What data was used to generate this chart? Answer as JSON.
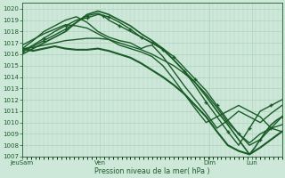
{
  "background_color": "#cde8d8",
  "grid_color": "#aaccb8",
  "line_color": "#1a5c28",
  "xlabel": "Pression niveau de la mer( hPa )",
  "ylim": [
    1007,
    1020.5
  ],
  "yticks": [
    1007,
    1008,
    1009,
    1010,
    1011,
    1012,
    1013,
    1014,
    1015,
    1016,
    1017,
    1018,
    1019,
    1020
  ],
  "xtick_labels": [
    "JeuSam",
    "Ven",
    "Dim",
    "Lun"
  ],
  "xtick_pos": [
    0,
    72,
    173,
    212
  ],
  "xlim": [
    0,
    240
  ],
  "minor_xtick_count": 240,
  "lines": [
    {
      "x": [
        0,
        5,
        10,
        15,
        20,
        25,
        30,
        35,
        40,
        50,
        60,
        70,
        80,
        90,
        100,
        110,
        120,
        130,
        140,
        150,
        160,
        170,
        180,
        190,
        200,
        210,
        220,
        230,
        240
      ],
      "y": [
        1016.5,
        1016.4,
        1016.3,
        1016.4,
        1016.5,
        1016.6,
        1016.7,
        1016.6,
        1016.5,
        1016.4,
        1016.4,
        1016.5,
        1016.3,
        1016.0,
        1015.7,
        1015.2,
        1014.6,
        1014.0,
        1013.3,
        1012.5,
        1011.5,
        1010.5,
        1009.2,
        1008.0,
        1007.5,
        1007.2,
        1007.8,
        1008.5,
        1009.2
      ],
      "lw": 1.5,
      "marker": null,
      "ms": 0
    },
    {
      "x": [
        0,
        10,
        20,
        30,
        40,
        50,
        60,
        70,
        80,
        90,
        100,
        110,
        120,
        130,
        140,
        150,
        160,
        170,
        180,
        190,
        200,
        210,
        220,
        230,
        240
      ],
      "y": [
        1016.5,
        1016.6,
        1016.8,
        1017.0,
        1017.2,
        1017.3,
        1017.4,
        1017.4,
        1017.3,
        1017.0,
        1016.7,
        1016.4,
        1016.0,
        1015.5,
        1015.0,
        1014.3,
        1013.5,
        1012.5,
        1011.3,
        1010.0,
        1009.0,
        1008.2,
        1009.0,
        1009.5,
        1009.8
      ],
      "lw": 1.0,
      "marker": null,
      "ms": 0
    },
    {
      "x": [
        0,
        10,
        20,
        30,
        40,
        50,
        60,
        70,
        80,
        90,
        100,
        110,
        120,
        130,
        140,
        150,
        160,
        170,
        180,
        190,
        200,
        210,
        220,
        225,
        230,
        235,
        240
      ],
      "y": [
        1016.3,
        1016.8,
        1017.4,
        1018.0,
        1018.5,
        1019.0,
        1019.2,
        1019.5,
        1019.3,
        1018.8,
        1018.2,
        1017.5,
        1017.0,
        1016.5,
        1015.8,
        1014.8,
        1013.8,
        1012.8,
        1011.5,
        1010.2,
        1009.0,
        1008.0,
        1008.5,
        1009.0,
        1009.5,
        1010.0,
        1010.5
      ],
      "lw": 1.0,
      "marker": "+",
      "ms": 3
    },
    {
      "x": [
        0,
        10,
        20,
        30,
        40,
        50,
        60,
        70,
        80,
        90,
        100,
        110,
        120,
        130,
        140,
        150,
        160,
        170,
        180,
        190,
        200,
        210,
        215,
        220,
        225,
        230,
        235,
        240
      ],
      "y": [
        1016.0,
        1016.5,
        1017.0,
        1017.5,
        1018.0,
        1018.8,
        1019.5,
        1019.8,
        1019.5,
        1019.0,
        1018.5,
        1017.8,
        1017.2,
        1016.5,
        1015.5,
        1014.5,
        1013.5,
        1012.3,
        1011.0,
        1009.8,
        1008.5,
        1007.2,
        1007.8,
        1008.5,
        1009.2,
        1009.8,
        1010.2,
        1010.5
      ],
      "lw": 1.2,
      "marker": null,
      "ms": 0
    },
    {
      "x": [
        0,
        10,
        20,
        30,
        40,
        50,
        60,
        70,
        75,
        80,
        90,
        100,
        110,
        120,
        130,
        140,
        150,
        160,
        170,
        180,
        190,
        200,
        210,
        220,
        230,
        240
      ],
      "y": [
        1016.2,
        1016.7,
        1017.2,
        1017.7,
        1018.2,
        1018.8,
        1019.4,
        1019.6,
        1019.4,
        1019.0,
        1018.5,
        1018.0,
        1017.5,
        1017.0,
        1016.4,
        1015.5,
        1014.5,
        1013.2,
        1011.8,
        1010.5,
        1009.2,
        1008.0,
        1009.5,
        1011.0,
        1011.5,
        1012.0
      ],
      "lw": 1.0,
      "marker": "+",
      "ms": 3
    },
    {
      "x": [
        0,
        10,
        20,
        30,
        40,
        50,
        60,
        70,
        80,
        90,
        100,
        110,
        115,
        120,
        130,
        140,
        150,
        160,
        170,
        180,
        190,
        200,
        210,
        220,
        230,
        240
      ],
      "y": [
        1016.5,
        1017.2,
        1018.0,
        1018.5,
        1019.0,
        1019.3,
        1018.8,
        1018.0,
        1017.5,
        1017.2,
        1017.0,
        1016.5,
        1016.7,
        1016.8,
        1015.8,
        1014.5,
        1013.2,
        1012.0,
        1010.8,
        1009.5,
        1010.2,
        1011.0,
        1010.5,
        1010.0,
        1010.8,
        1011.5
      ],
      "lw": 1.0,
      "marker": null,
      "ms": 0
    },
    {
      "x": [
        0,
        10,
        20,
        30,
        40,
        50,
        55,
        60,
        70,
        80,
        90,
        100,
        110,
        120,
        130,
        140,
        150,
        160,
        170,
        180,
        190,
        200,
        210,
        220,
        230,
        240
      ],
      "y": [
        1016.8,
        1017.3,
        1017.8,
        1018.2,
        1018.6,
        1018.5,
        1018.4,
        1018.3,
        1017.8,
        1017.3,
        1016.8,
        1016.5,
        1016.2,
        1015.8,
        1015.0,
        1013.8,
        1012.5,
        1011.2,
        1010.0,
        1010.5,
        1011.0,
        1011.5,
        1011.0,
        1010.5,
        1009.5,
        1009.2
      ],
      "lw": 1.0,
      "marker": null,
      "ms": 0
    }
  ]
}
